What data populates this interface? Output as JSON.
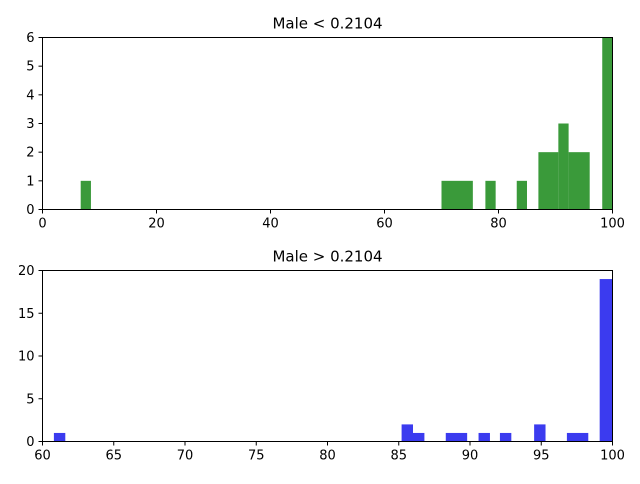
{
  "chart_data": [
    {
      "type": "bar",
      "title": "Male < 0.2104",
      "xlabel": "",
      "ylabel": "",
      "xlim": [
        0,
        100
      ],
      "ylim": [
        0,
        6
      ],
      "xticks": [
        "0",
        "20",
        "40",
        "60",
        "80",
        "100"
      ],
      "yticks": [
        "0",
        "1",
        "2",
        "3",
        "4",
        "5",
        "6"
      ],
      "grid": false,
      "color": "#3a9a3a",
      "bins": [
        {
          "x0": 6.7,
          "x1": 8.5,
          "count": 1
        },
        {
          "x0": 70.0,
          "x1": 75.5,
          "count": 1
        },
        {
          "x0": 77.7,
          "x1": 79.5,
          "count": 1
        },
        {
          "x0": 83.2,
          "x1": 85.0,
          "count": 1
        },
        {
          "x0": 87.0,
          "x1": 90.5,
          "count": 2
        },
        {
          "x0": 90.5,
          "x1": 92.3,
          "count": 3
        },
        {
          "x0": 92.3,
          "x1": 96.0,
          "count": 2
        },
        {
          "x0": 98.2,
          "x1": 100.0,
          "count": 6
        }
      ]
    },
    {
      "type": "bar",
      "title": "Male > 0.2104",
      "xlabel": "",
      "ylabel": "",
      "xlim": [
        60,
        100
      ],
      "ylim": [
        0,
        20
      ],
      "xticks": [
        "60",
        "65",
        "70",
        "75",
        "80",
        "85",
        "90",
        "95",
        "100"
      ],
      "yticks": [
        "0",
        "5",
        "10",
        "15",
        "20"
      ],
      "grid": false,
      "color": "#3b3bef",
      "bins": [
        {
          "x0": 60.8,
          "x1": 61.6,
          "count": 1
        },
        {
          "x0": 85.2,
          "x1": 86.0,
          "count": 2
        },
        {
          "x0": 86.0,
          "x1": 86.8,
          "count": 1
        },
        {
          "x0": 88.3,
          "x1": 89.8,
          "count": 1
        },
        {
          "x0": 90.6,
          "x1": 91.4,
          "count": 1
        },
        {
          "x0": 92.1,
          "x1": 92.9,
          "count": 1
        },
        {
          "x0": 94.5,
          "x1": 95.3,
          "count": 2
        },
        {
          "x0": 96.8,
          "x1": 98.3,
          "count": 1
        },
        {
          "x0": 99.1,
          "x1": 100.0,
          "count": 19
        }
      ]
    }
  ]
}
